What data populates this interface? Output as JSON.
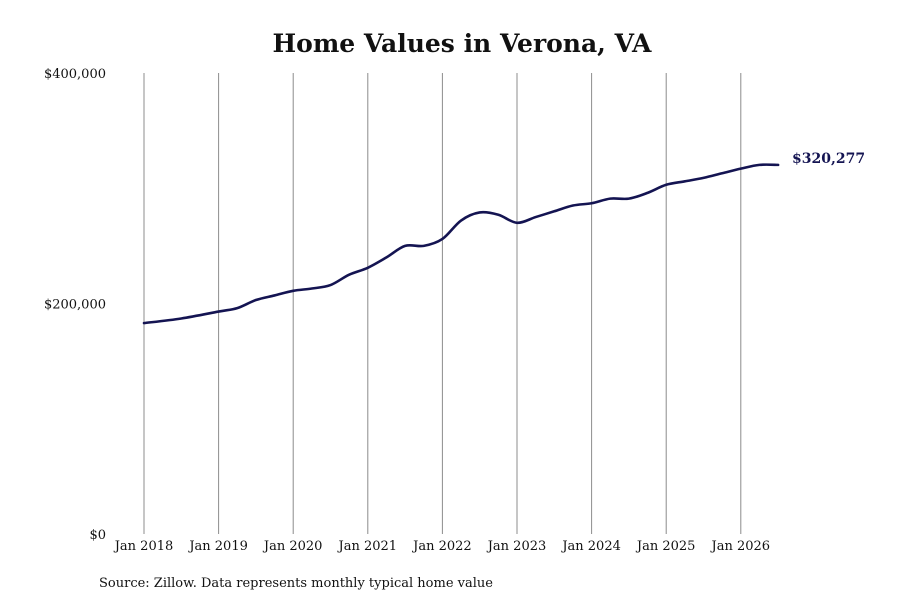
{
  "chart_data": {
    "type": "line",
    "title": "Home Values in Verona, VA",
    "xlabel": "",
    "ylabel": "",
    "ylim": [
      0,
      400000
    ],
    "y_ticks": [
      {
        "value": 0,
        "label": "$0"
      },
      {
        "value": 200000,
        "label": "$200,000"
      },
      {
        "value": 400000,
        "label": "$400,000"
      }
    ],
    "x_ticks": [
      "Jan 2018",
      "Jan 2019",
      "Jan 2020",
      "Jan 2021",
      "Jan 2022",
      "Jan 2023",
      "Jan 2024",
      "Jan 2025",
      "Jan 2026"
    ],
    "grid": "vertical lines at each January",
    "legend": "none",
    "line_color": "#141452",
    "end_label": "$320,277",
    "series": [
      {
        "x": [
          "2018-01",
          "2018-07",
          "2019-01",
          "2019-04",
          "2019-07",
          "2019-10",
          "2020-01",
          "2020-04",
          "2020-07",
          "2020-10",
          "2021-01",
          "2021-04",
          "2021-07",
          "2021-10",
          "2022-01",
          "2022-04",
          "2022-07",
          "2022-10",
          "2023-01",
          "2023-04",
          "2023-07",
          "2023-10",
          "2024-01",
          "2024-04",
          "2024-07",
          "2024-10",
          "2025-01",
          "2025-04",
          "2025-07",
          "2025-10",
          "2026-01",
          "2026-04",
          "2026-07"
        ],
        "values": [
          183000,
          187000,
          193000,
          196000,
          203000,
          207000,
          211000,
          213000,
          216000,
          225000,
          231000,
          240000,
          250000,
          250000,
          256000,
          272000,
          279000,
          277000,
          270000,
          275000,
          280000,
          285000,
          287000,
          291000,
          291000,
          296000,
          303000,
          306000,
          309000,
          313000,
          317000,
          320277,
          320277
        ]
      }
    ]
  },
  "source_note": "Source: Zillow. Data represents monthly typical home value"
}
